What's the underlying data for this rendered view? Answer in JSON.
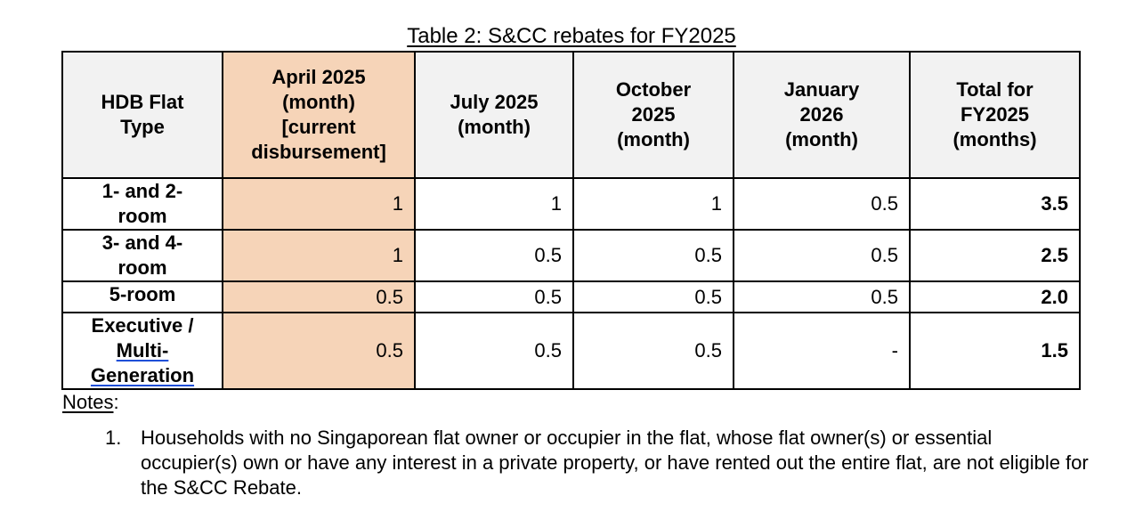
{
  "caption": "Table 2: S&CC rebates for FY2025",
  "table": {
    "headers": [
      [
        "HDB Flat",
        "Type"
      ],
      [
        "April 2025",
        "(month)",
        "[current",
        "disbursement]"
      ],
      [
        "July 2025",
        "(month)"
      ],
      [
        "October",
        "2025",
        "(month)"
      ],
      [
        "January",
        "2026",
        "(month)"
      ],
      [
        "Total for",
        "FY2025",
        "(months)"
      ]
    ],
    "rows": [
      {
        "type_lines": [
          "1- and 2-",
          "room"
        ],
        "april": "1",
        "july": "1",
        "october": "1",
        "january": "0.5",
        "total": "3.5"
      },
      {
        "type_lines": [
          "3- and 4-",
          "room"
        ],
        "april": "1",
        "july": "0.5",
        "october": "0.5",
        "january": "0.5",
        "total": "2.5"
      },
      {
        "type_lines": [
          "5-room"
        ],
        "april": "0.5",
        "july": "0.5",
        "october": "0.5",
        "january": "0.5",
        "total": "2.0"
      },
      {
        "type_lines": [
          "Executive /",
          "Multi-",
          "Generation"
        ],
        "april": "0.5",
        "july": "0.5",
        "october": "0.5",
        "january": "-",
        "total": "1.5"
      }
    ],
    "highlight_color": "#f6d4b8",
    "header_background": "#f2f2f2"
  },
  "notes": {
    "label": "Notes",
    "label_suffix": ":",
    "items": [
      {
        "number": "1.",
        "text": "Households with no Singaporean flat owner or occupier in the flat, whose flat owner(s) or essential occupier(s) own or have any interest in a private property, or have rented out the entire flat, are not eligible for the S&CC Rebate."
      }
    ]
  }
}
